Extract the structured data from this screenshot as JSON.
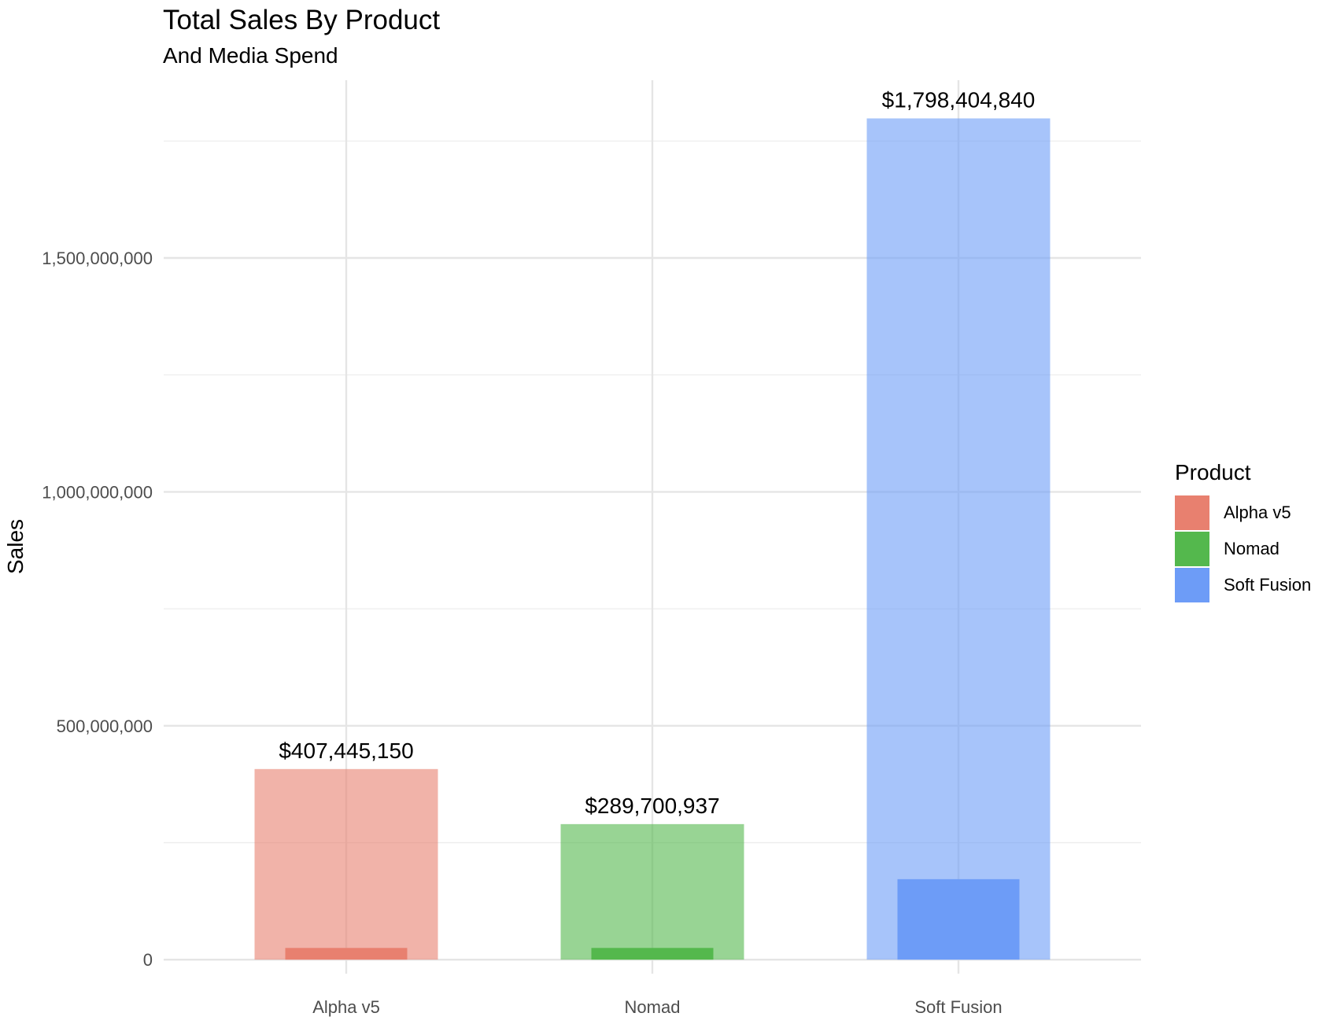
{
  "chart_data": {
    "type": "bar",
    "title": "Total Sales By Product",
    "subtitle": "And Media Spend",
    "xlabel": "",
    "ylabel": "Sales",
    "ylim": [
      -30000000,
      1880000000
    ],
    "y_ticks": [
      0,
      500000000,
      1000000000,
      1500000000
    ],
    "y_tick_labels": [
      "0",
      "500,000,000",
      "1,000,000,000",
      "1,500,000,000"
    ],
    "y_minor_ticks": [
      250000000,
      750000000,
      1250000000,
      1750000000
    ],
    "categories": [
      "Alpha v5",
      "Nomad",
      "Soft Fusion"
    ],
    "series": [
      {
        "values": [
          407445150,
          289700937,
          1798404840
        ],
        "labels": [
          "$407,445,150",
          "$289,700,937",
          "$1,798,404,840"
        ]
      },
      {
        "values": [
          25000000,
          25000000,
          172000000
        ]
      }
    ],
    "colors": [
      "#E8806F",
      "#54B84D",
      "#6D9CF7"
    ],
    "grid": true,
    "legend": {
      "title": "Product",
      "position": "right",
      "entries": [
        "Alpha v5",
        "Nomad",
        "Soft Fusion"
      ]
    }
  }
}
